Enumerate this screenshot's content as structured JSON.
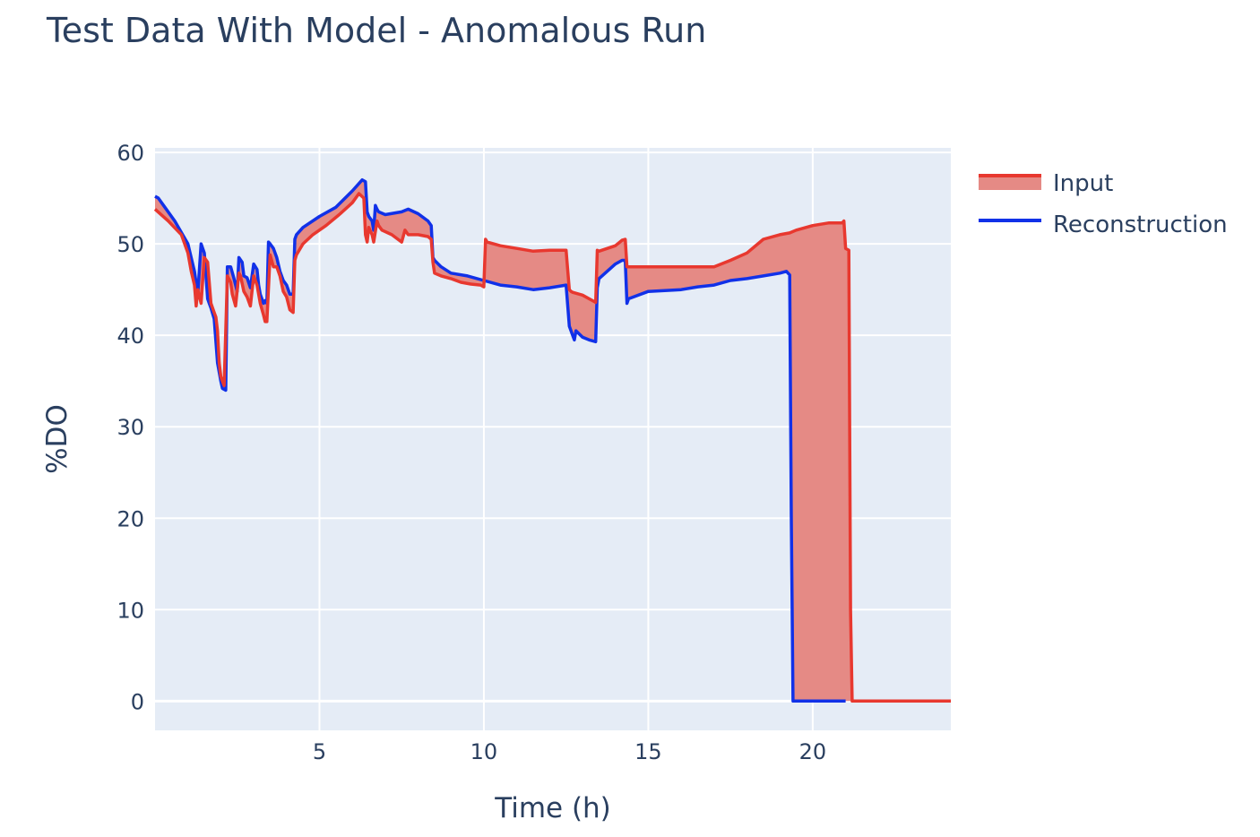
{
  "chart_data": {
    "type": "line",
    "title": "Test Data With Model - Anomalous Run",
    "xlabel": "Time (h)",
    "ylabel": "%DO",
    "xlim": [
      0,
      24.2
    ],
    "ylim": [
      -3.2,
      60.5
    ],
    "xticks": [
      5,
      10,
      15,
      20
    ],
    "yticks": [
      0,
      10,
      20,
      30,
      40,
      50,
      60
    ],
    "grid": true,
    "legend": "top-right",
    "fill_between": "Input vs Reconstruction (red shaded)",
    "colors": {
      "input": "#e8382f",
      "input_fill": "#e58a85",
      "reconstruction": "#1131e8",
      "plot_bg": "#e5ecf6",
      "grid": "#ffffff"
    },
    "series": [
      {
        "name": "Input",
        "x": [
          0.0,
          0.4,
          0.8,
          1.0,
          1.1,
          1.2,
          1.25,
          1.3,
          1.4,
          1.5,
          1.6,
          1.7,
          1.8,
          1.85,
          1.9,
          1.95,
          2.0,
          2.05,
          2.1,
          2.2,
          2.3,
          2.35,
          2.45,
          2.55,
          2.6,
          2.7,
          2.8,
          2.9,
          3.0,
          3.1,
          3.2,
          3.3,
          3.35,
          3.4,
          3.5,
          3.6,
          3.7,
          3.8,
          3.9,
          4.0,
          4.1,
          4.2,
          4.25,
          4.3,
          4.5,
          4.8,
          5.2,
          5.6,
          6.0,
          6.2,
          6.35,
          6.4,
          6.45,
          6.5,
          6.6,
          6.65,
          6.75,
          6.8,
          6.9,
          7.2,
          7.5,
          7.6,
          7.7,
          8.0,
          8.3,
          8.4,
          8.45,
          8.5,
          8.7,
          9.0,
          9.3,
          9.6,
          9.9,
          10.0,
          10.05,
          10.1,
          10.5,
          11.0,
          11.5,
          12.0,
          12.5,
          12.6,
          12.65,
          12.7,
          13.0,
          13.3,
          13.4,
          13.45,
          13.5,
          14.0,
          14.2,
          14.3,
          14.35,
          14.4,
          15.0,
          15.5,
          16.0,
          16.5,
          17.0,
          17.5,
          18.0,
          18.5,
          19.0,
          19.3,
          19.5,
          20.0,
          20.5,
          20.9,
          20.95,
          21.0,
          21.1,
          21.15,
          21.2,
          24.2
        ],
        "values": [
          53.8,
          52.5,
          51.0,
          49.0,
          47.0,
          45.5,
          43.2,
          45.0,
          43.5,
          48.5,
          48.0,
          43.5,
          42.5,
          42.0,
          40.5,
          37.0,
          35.5,
          35.0,
          34.5,
          46.5,
          45.8,
          44.5,
          43.2,
          46.8,
          46.5,
          44.8,
          44.2,
          43.2,
          46.5,
          45.5,
          43.5,
          42.2,
          41.5,
          41.5,
          48.8,
          47.5,
          47.5,
          46.5,
          44.8,
          44.2,
          42.8,
          42.5,
          48.2,
          48.8,
          50.0,
          51.0,
          52.0,
          53.2,
          54.5,
          55.5,
          55.0,
          51.0,
          50.2,
          51.8,
          51.0,
          50.2,
          52.5,
          52.0,
          51.5,
          51.0,
          50.2,
          51.5,
          51.0,
          51.0,
          50.8,
          50.5,
          48.0,
          46.8,
          46.5,
          46.2,
          45.8,
          45.6,
          45.5,
          45.3,
          50.5,
          50.2,
          49.8,
          49.5,
          49.2,
          49.3,
          49.3,
          45.0,
          44.8,
          44.7,
          44.4,
          43.8,
          43.6,
          49.3,
          49.2,
          49.8,
          50.4,
          50.5,
          47.5,
          47.5,
          47.5,
          47.5,
          47.5,
          47.5,
          47.5,
          48.2,
          49.0,
          50.5,
          51.0,
          51.2,
          51.5,
          52.0,
          52.3,
          52.3,
          52.5,
          49.5,
          49.3,
          10.0,
          0.0,
          0.0
        ]
      },
      {
        "name": "Reconstruction",
        "x": [
          0.0,
          0.1,
          0.3,
          0.6,
          1.0,
          1.2,
          1.3,
          1.4,
          1.45,
          1.5,
          1.6,
          1.65,
          1.7,
          1.8,
          1.9,
          2.0,
          2.05,
          2.15,
          2.2,
          2.3,
          2.4,
          2.45,
          2.5,
          2.55,
          2.65,
          2.7,
          2.8,
          2.9,
          3.0,
          3.1,
          3.15,
          3.2,
          3.3,
          3.35,
          3.4,
          3.45,
          3.5,
          3.6,
          3.7,
          3.8,
          3.9,
          4.0,
          4.1,
          4.2,
          4.25,
          4.3,
          4.5,
          5.0,
          5.5,
          6.0,
          6.3,
          6.4,
          6.45,
          6.5,
          6.6,
          6.65,
          6.7,
          6.75,
          6.8,
          7.0,
          7.5,
          7.7,
          8.0,
          8.3,
          8.4,
          8.45,
          8.5,
          8.7,
          9.0,
          9.5,
          10.0,
          10.5,
          11.0,
          11.5,
          12.0,
          12.5,
          12.6,
          12.7,
          12.75,
          12.8,
          13.0,
          13.2,
          13.4,
          13.45,
          13.5,
          14.0,
          14.2,
          14.3,
          14.35,
          14.4,
          15.0,
          15.5,
          16.0,
          16.5,
          17.0,
          17.5,
          18.0,
          18.5,
          19.0,
          19.2,
          19.3,
          19.35,
          19.4,
          20.0,
          21.0
        ],
        "values": [
          55.2,
          55.0,
          54.0,
          52.5,
          50.0,
          47.0,
          44.5,
          50.0,
          49.5,
          49.0,
          44.0,
          43.5,
          43.0,
          41.8,
          37.0,
          35.0,
          34.2,
          34.0,
          47.5,
          47.5,
          46.2,
          45.5,
          44.8,
          48.5,
          48.0,
          46.5,
          46.3,
          45.2,
          47.8,
          47.2,
          45.5,
          44.5,
          43.5,
          43.8,
          43.5,
          50.2,
          50.0,
          49.5,
          48.5,
          47.0,
          46.0,
          45.5,
          44.5,
          44.5,
          50.5,
          51.0,
          51.8,
          53.0,
          54.0,
          55.8,
          57.0,
          56.8,
          53.5,
          53.0,
          52.5,
          51.5,
          54.2,
          53.8,
          53.5,
          53.2,
          53.5,
          53.8,
          53.3,
          52.5,
          52.0,
          48.5,
          48.2,
          47.5,
          46.8,
          46.5,
          46.0,
          45.5,
          45.3,
          45.0,
          45.2,
          45.5,
          41.0,
          40.0,
          39.5,
          40.5,
          39.8,
          39.5,
          39.3,
          45.2,
          46.2,
          47.8,
          48.2,
          48.2,
          43.5,
          44.0,
          44.8,
          44.9,
          45.0,
          45.3,
          45.5,
          46.0,
          46.2,
          46.5,
          46.8,
          47.0,
          46.6,
          20.0,
          0.0,
          0.0,
          0.0
        ]
      }
    ]
  }
}
